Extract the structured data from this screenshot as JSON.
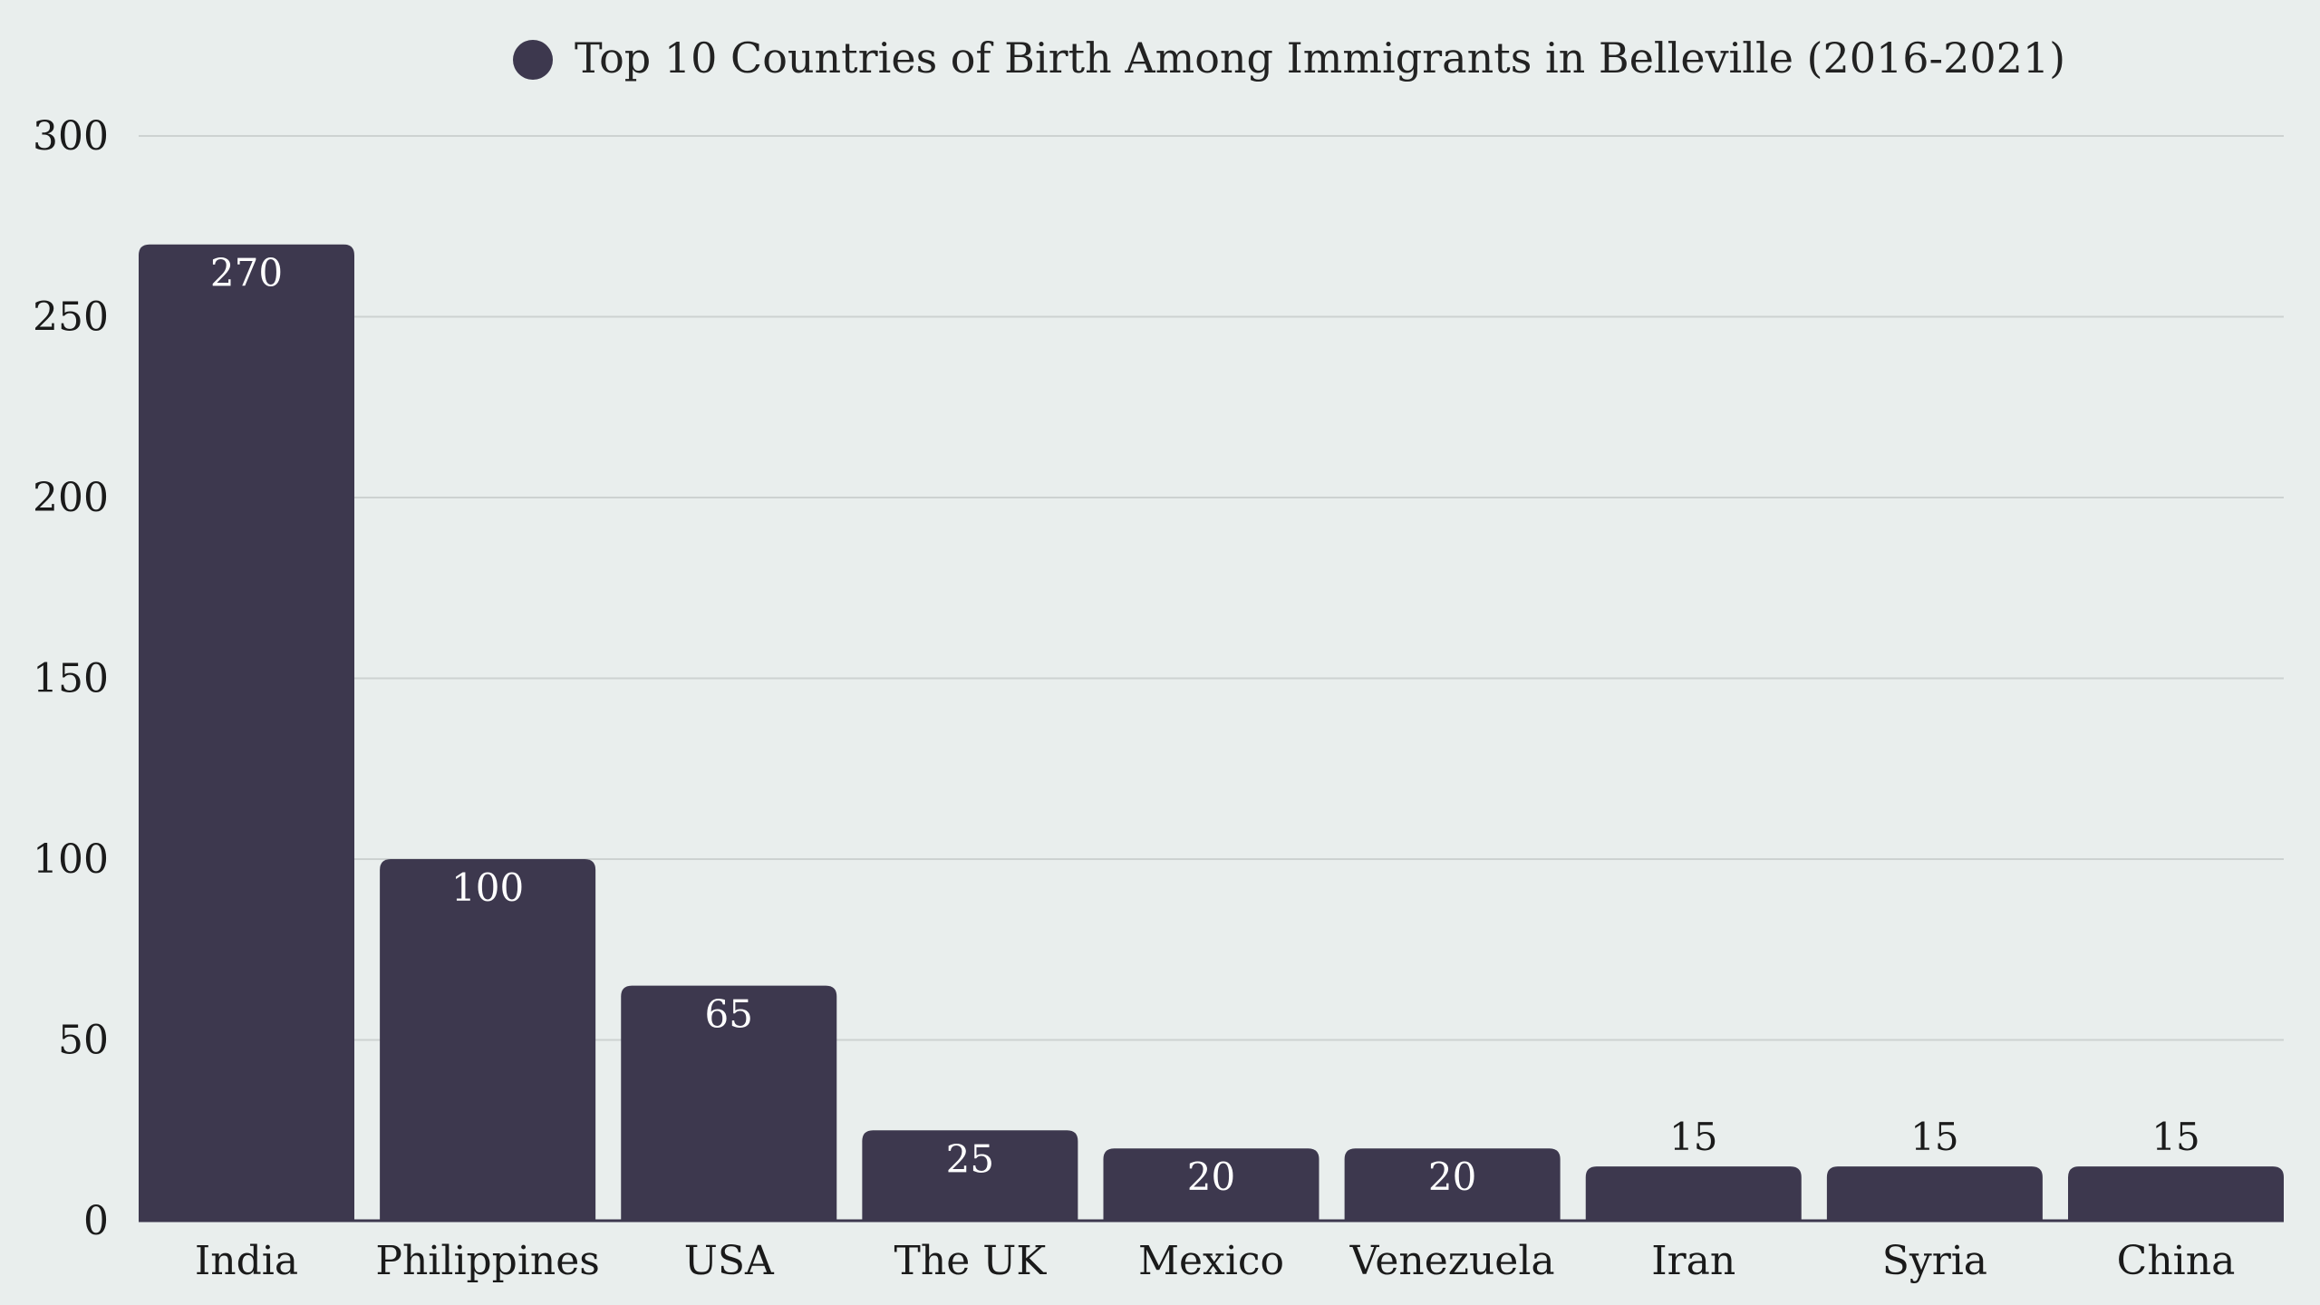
{
  "chart_data": {
    "type": "bar",
    "title": "Top 10 Countries of Birth Among Immigrants in Belleville (2016-2021)",
    "xlabel": "",
    "ylabel": "",
    "categories": [
      "India",
      "Philippines",
      "USA",
      "The UK",
      "Mexico",
      "Venezuela",
      "Iran",
      "Syria",
      "China"
    ],
    "values": [
      270,
      100,
      65,
      25,
      20,
      20,
      15,
      15,
      15
    ],
    "ylim": [
      0,
      300
    ],
    "yticks": [
      0,
      50,
      100,
      150,
      200,
      250,
      300
    ],
    "yticks_text": [
      "0",
      "50",
      "100",
      "150",
      "200",
      "250",
      "300"
    ],
    "grid": true,
    "legend_position": "top-center",
    "colors": {
      "bar": "#3d384e",
      "background": "#e9eeed",
      "label_inside": "#ffffff",
      "label_outside": "#1a1a1a",
      "grid": "#cdd2d1"
    }
  }
}
